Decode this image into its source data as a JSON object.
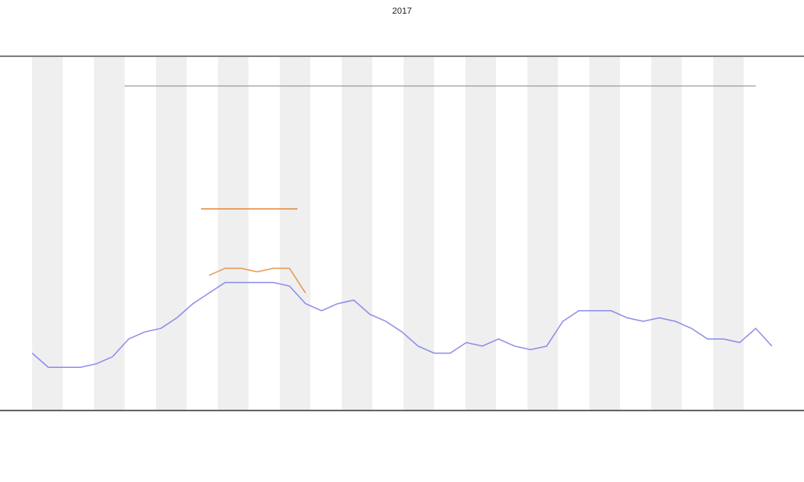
{
  "chart_data": {
    "type": "line",
    "title": "2017",
    "x": [
      0,
      1,
      2,
      3,
      4,
      5,
      6,
      7,
      8,
      9,
      10,
      11,
      12,
      13,
      14,
      15,
      16,
      17,
      18,
      19,
      20,
      21,
      22,
      23,
      24,
      25,
      26,
      27,
      28,
      29,
      30,
      31,
      32,
      33,
      34,
      35,
      36,
      37,
      38,
      39,
      40,
      41,
      42,
      43,
      44,
      45,
      46
    ],
    "xlim": [
      0,
      46
    ],
    "ylim": [
      0,
      100
    ],
    "series": [
      {
        "name": null,
        "color": "#7b7be8",
        "values": [
          16,
          12,
          12,
          12,
          13,
          15,
          20,
          22,
          23,
          26,
          30,
          33,
          36,
          36,
          36,
          36,
          35,
          30,
          28,
          30,
          31,
          27,
          25,
          22,
          18,
          16,
          16,
          19,
          18,
          20,
          18,
          17,
          18,
          25,
          28,
          28,
          28,
          26,
          25,
          26,
          25,
          23,
          20,
          20,
          19,
          23,
          18
        ]
      },
      {
        "name": null,
        "color": "#e08a3c",
        "values": [
          null,
          null,
          null,
          null,
          null,
          null,
          null,
          null,
          null,
          null,
          null,
          38,
          40,
          40,
          39,
          40,
          40,
          33,
          null,
          null,
          null,
          null,
          null,
          null,
          null,
          null,
          null,
          null,
          null,
          null,
          null,
          null,
          null,
          null,
          null,
          null,
          null,
          null,
          null,
          null,
          null,
          null,
          null,
          null,
          null,
          null,
          null
        ]
      }
    ]
  }
}
